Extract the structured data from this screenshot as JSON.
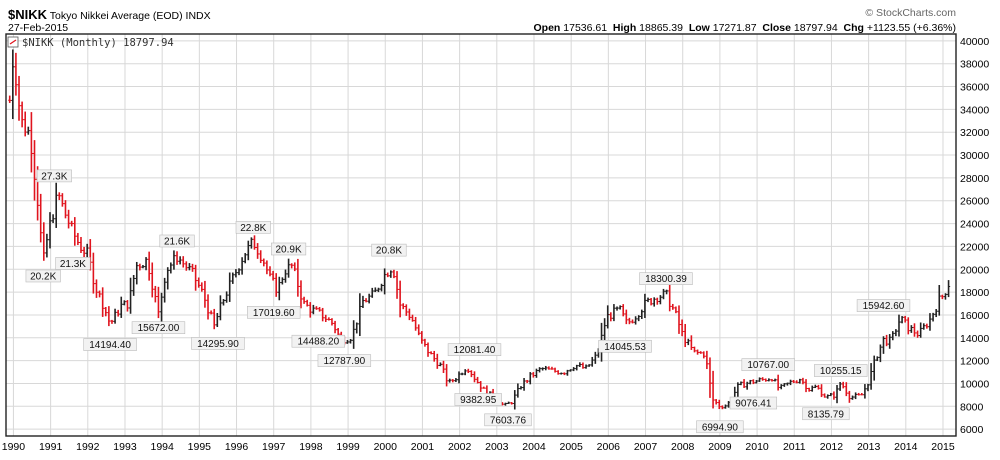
{
  "header": {
    "ticker": "$NIKK",
    "name": "Tokyo Nikkei Average (EOD)",
    "exchange": "INDX",
    "date": "27-Feb-2015",
    "watermark": "© StockCharts.com",
    "open_label": "Open",
    "open": "17536.61",
    "high_label": "High",
    "high": "18865.39",
    "low_label": "Low",
    "low": "17271.87",
    "close_label": "Close",
    "close": "18797.94",
    "chg_label": "Chg",
    "chg": "+1123.55 (+6.36%)"
  },
  "legend": {
    "text": "$NIKK (Monthly) 18797.94"
  },
  "colors": {
    "up": "#222222",
    "down": "#e0141e",
    "grid": "#d8d8d8",
    "frame": "#222222",
    "label_bg": "#f2f2f2"
  },
  "chart_data": {
    "type": "line",
    "subtype": "ohlc-bars",
    "title": "$NIKK Tokyo Nikkei Average (EOD) INDX",
    "series": [
      {
        "name": "$NIKK (Monthly)",
        "last": 18797.94
      }
    ],
    "xlabel": "",
    "ylabel": "",
    "xlim": [
      1989.8,
      2015.35
    ],
    "ylim": [
      5400,
      40600
    ],
    "grid": true,
    "x_ticks": [
      1990,
      1991,
      1992,
      1993,
      1994,
      1995,
      1996,
      1997,
      1998,
      1999,
      2000,
      2001,
      2002,
      2003,
      2004,
      2005,
      2006,
      2007,
      2008,
      2009,
      2010,
      2011,
      2012,
      2013,
      2014,
      2015
    ],
    "y_ticks": [
      6000,
      8000,
      10000,
      12000,
      14000,
      16000,
      18000,
      20000,
      22000,
      24000,
      26000,
      28000,
      30000,
      32000,
      34000,
      36000,
      38000,
      40000
    ],
    "anchors": [
      [
        1989.9,
        34800
      ],
      [
        1990.0,
        38900
      ],
      [
        1990.2,
        33000
      ],
      [
        1990.45,
        31800
      ],
      [
        1990.65,
        26000
      ],
      [
        1990.8,
        20600
      ],
      [
        1990.95,
        23500
      ],
      [
        1991.2,
        26600
      ],
      [
        1991.4,
        24800
      ],
      [
        1991.6,
        23200
      ],
      [
        1991.8,
        22000
      ],
      [
        1992.0,
        21300
      ],
      [
        1992.2,
        18500
      ],
      [
        1992.4,
        17000
      ],
      [
        1992.6,
        15200
      ],
      [
        1992.9,
        16800
      ],
      [
        1993.1,
        17000
      ],
      [
        1993.3,
        20300
      ],
      [
        1993.6,
        20800
      ],
      [
        1993.9,
        16100
      ],
      [
        1994.1,
        19900
      ],
      [
        1994.4,
        21100
      ],
      [
        1994.8,
        19700
      ],
      [
        1995.1,
        17800
      ],
      [
        1995.4,
        15000
      ],
      [
        1995.6,
        17000
      ],
      [
        1995.9,
        19200
      ],
      [
        1996.2,
        21300
      ],
      [
        1996.45,
        22400
      ],
      [
        1996.7,
        21000
      ],
      [
        1996.9,
        19200
      ],
      [
        1997.1,
        18200
      ],
      [
        1997.3,
        19900
      ],
      [
        1997.5,
        20300
      ],
      [
        1997.8,
        17000
      ],
      [
        1998.0,
        16500
      ],
      [
        1998.3,
        16000
      ],
      [
        1998.6,
        15200
      ],
      [
        1998.8,
        13800
      ],
      [
        1999.1,
        14100
      ],
      [
        1999.4,
        17200
      ],
      [
        1999.7,
        17800
      ],
      [
        2000.0,
        19600
      ],
      [
        2000.2,
        20300
      ],
      [
        2000.4,
        16900
      ],
      [
        2000.7,
        15800
      ],
      [
        2000.95,
        13800
      ],
      [
        2001.2,
        12600
      ],
      [
        2001.5,
        11500
      ],
      [
        2001.7,
        10000
      ],
      [
        2001.9,
        10500
      ],
      [
        2002.2,
        11500
      ],
      [
        2002.4,
        10500
      ],
      [
        2002.7,
        9200
      ],
      [
        2002.95,
        8800
      ],
      [
        2003.2,
        8000
      ],
      [
        2003.4,
        8400
      ],
      [
        2003.65,
        9800
      ],
      [
        2003.9,
        10600
      ],
      [
        2004.2,
        11300
      ],
      [
        2004.5,
        11100
      ],
      [
        2004.8,
        11000
      ],
      [
        2005.1,
        11600
      ],
      [
        2005.4,
        11300
      ],
      [
        2005.7,
        12500
      ],
      [
        2005.95,
        15800
      ],
      [
        2006.3,
        16500
      ],
      [
        2006.5,
        15200
      ],
      [
        2006.75,
        16000
      ],
      [
        2007.0,
        17000
      ],
      [
        2007.3,
        17600
      ],
      [
        2007.55,
        17800
      ],
      [
        2007.8,
        16100
      ],
      [
        2008.0,
        14200
      ],
      [
        2008.3,
        12700
      ],
      [
        2008.6,
        12600
      ],
      [
        2008.8,
        8600
      ],
      [
        2009.0,
        8000
      ],
      [
        2009.2,
        8100
      ],
      [
        2009.5,
        9800
      ],
      [
        2009.8,
        10100
      ],
      [
        2010.1,
        10300
      ],
      [
        2010.4,
        10500
      ],
      [
        2010.6,
        9500
      ],
      [
        2010.9,
        10100
      ],
      [
        2011.15,
        10400
      ],
      [
        2011.4,
        9500
      ],
      [
        2011.6,
        9700
      ],
      [
        2011.85,
        8800
      ],
      [
        2012.1,
        9000
      ],
      [
        2012.25,
        10100
      ],
      [
        2012.5,
        8800
      ],
      [
        2012.8,
        8900
      ],
      [
        2013.0,
        10200
      ],
      [
        2013.2,
        12300
      ],
      [
        2013.4,
        13800
      ],
      [
        2013.6,
        13700
      ],
      [
        2013.85,
        15700
      ],
      [
        2014.1,
        14800
      ],
      [
        2014.35,
        14300
      ],
      [
        2014.65,
        15600
      ],
      [
        2014.9,
        17300
      ],
      [
        2015.0,
        17700
      ],
      [
        2015.16,
        18798
      ]
    ],
    "annotations": [
      {
        "label": "27.3K",
        "x": 1991.1,
        "y": 27300,
        "pos": "above"
      },
      {
        "label": "20.2K",
        "x": 1990.8,
        "y": 20200,
        "pos": "below"
      },
      {
        "label": "21.3K",
        "x": 1991.6,
        "y": 21300,
        "pos": "below"
      },
      {
        "label": "21.6K",
        "x": 1994.4,
        "y": 21600,
        "pos": "above"
      },
      {
        "label": "14194.40",
        "x": 1992.6,
        "y": 14194.4,
        "pos": "below"
      },
      {
        "label": "15672.00",
        "x": 1993.9,
        "y": 15672,
        "pos": "below"
      },
      {
        "label": "22.8K",
        "x": 1996.45,
        "y": 22800,
        "pos": "above"
      },
      {
        "label": "20.9K",
        "x": 1997.4,
        "y": 20900,
        "pos": "above"
      },
      {
        "label": "14295.90",
        "x": 1995.5,
        "y": 14295.9,
        "pos": "below"
      },
      {
        "label": "17019.60",
        "x": 1997.0,
        "y": 17019.6,
        "pos": "below"
      },
      {
        "label": "14488.20",
        "x": 1998.2,
        "y": 14488.2,
        "pos": "below"
      },
      {
        "label": "12787.90",
        "x": 1998.9,
        "y": 12787.9,
        "pos": "below"
      },
      {
        "label": "20.8K",
        "x": 2000.1,
        "y": 20800,
        "pos": "above"
      },
      {
        "label": "12081.40",
        "x": 2002.4,
        "y": 12081.4,
        "pos": "above"
      },
      {
        "label": "9382.95",
        "x": 2002.5,
        "y": 9382.95,
        "pos": "below"
      },
      {
        "label": "7603.76",
        "x": 2003.3,
        "y": 7603.76,
        "pos": "below"
      },
      {
        "label": "18300.39",
        "x": 2007.55,
        "y": 18300.39,
        "pos": "above"
      },
      {
        "label": "14045.53",
        "x": 2006.45,
        "y": 14045.53,
        "pos": "below"
      },
      {
        "label": "6994.90",
        "x": 2009.0,
        "y": 6994.9,
        "pos": "below"
      },
      {
        "label": "10767.00",
        "x": 2010.3,
        "y": 10767,
        "pos": "above"
      },
      {
        "label": "9076.41",
        "x": 2009.9,
        "y": 9076.41,
        "pos": "below"
      },
      {
        "label": "10255.15",
        "x": 2012.25,
        "y": 10255.15,
        "pos": "above"
      },
      {
        "label": "8135.79",
        "x": 2011.85,
        "y": 8135.79,
        "pos": "below"
      },
      {
        "label": "15942.60",
        "x": 2013.4,
        "y": 15942.6,
        "pos": "above"
      }
    ]
  }
}
